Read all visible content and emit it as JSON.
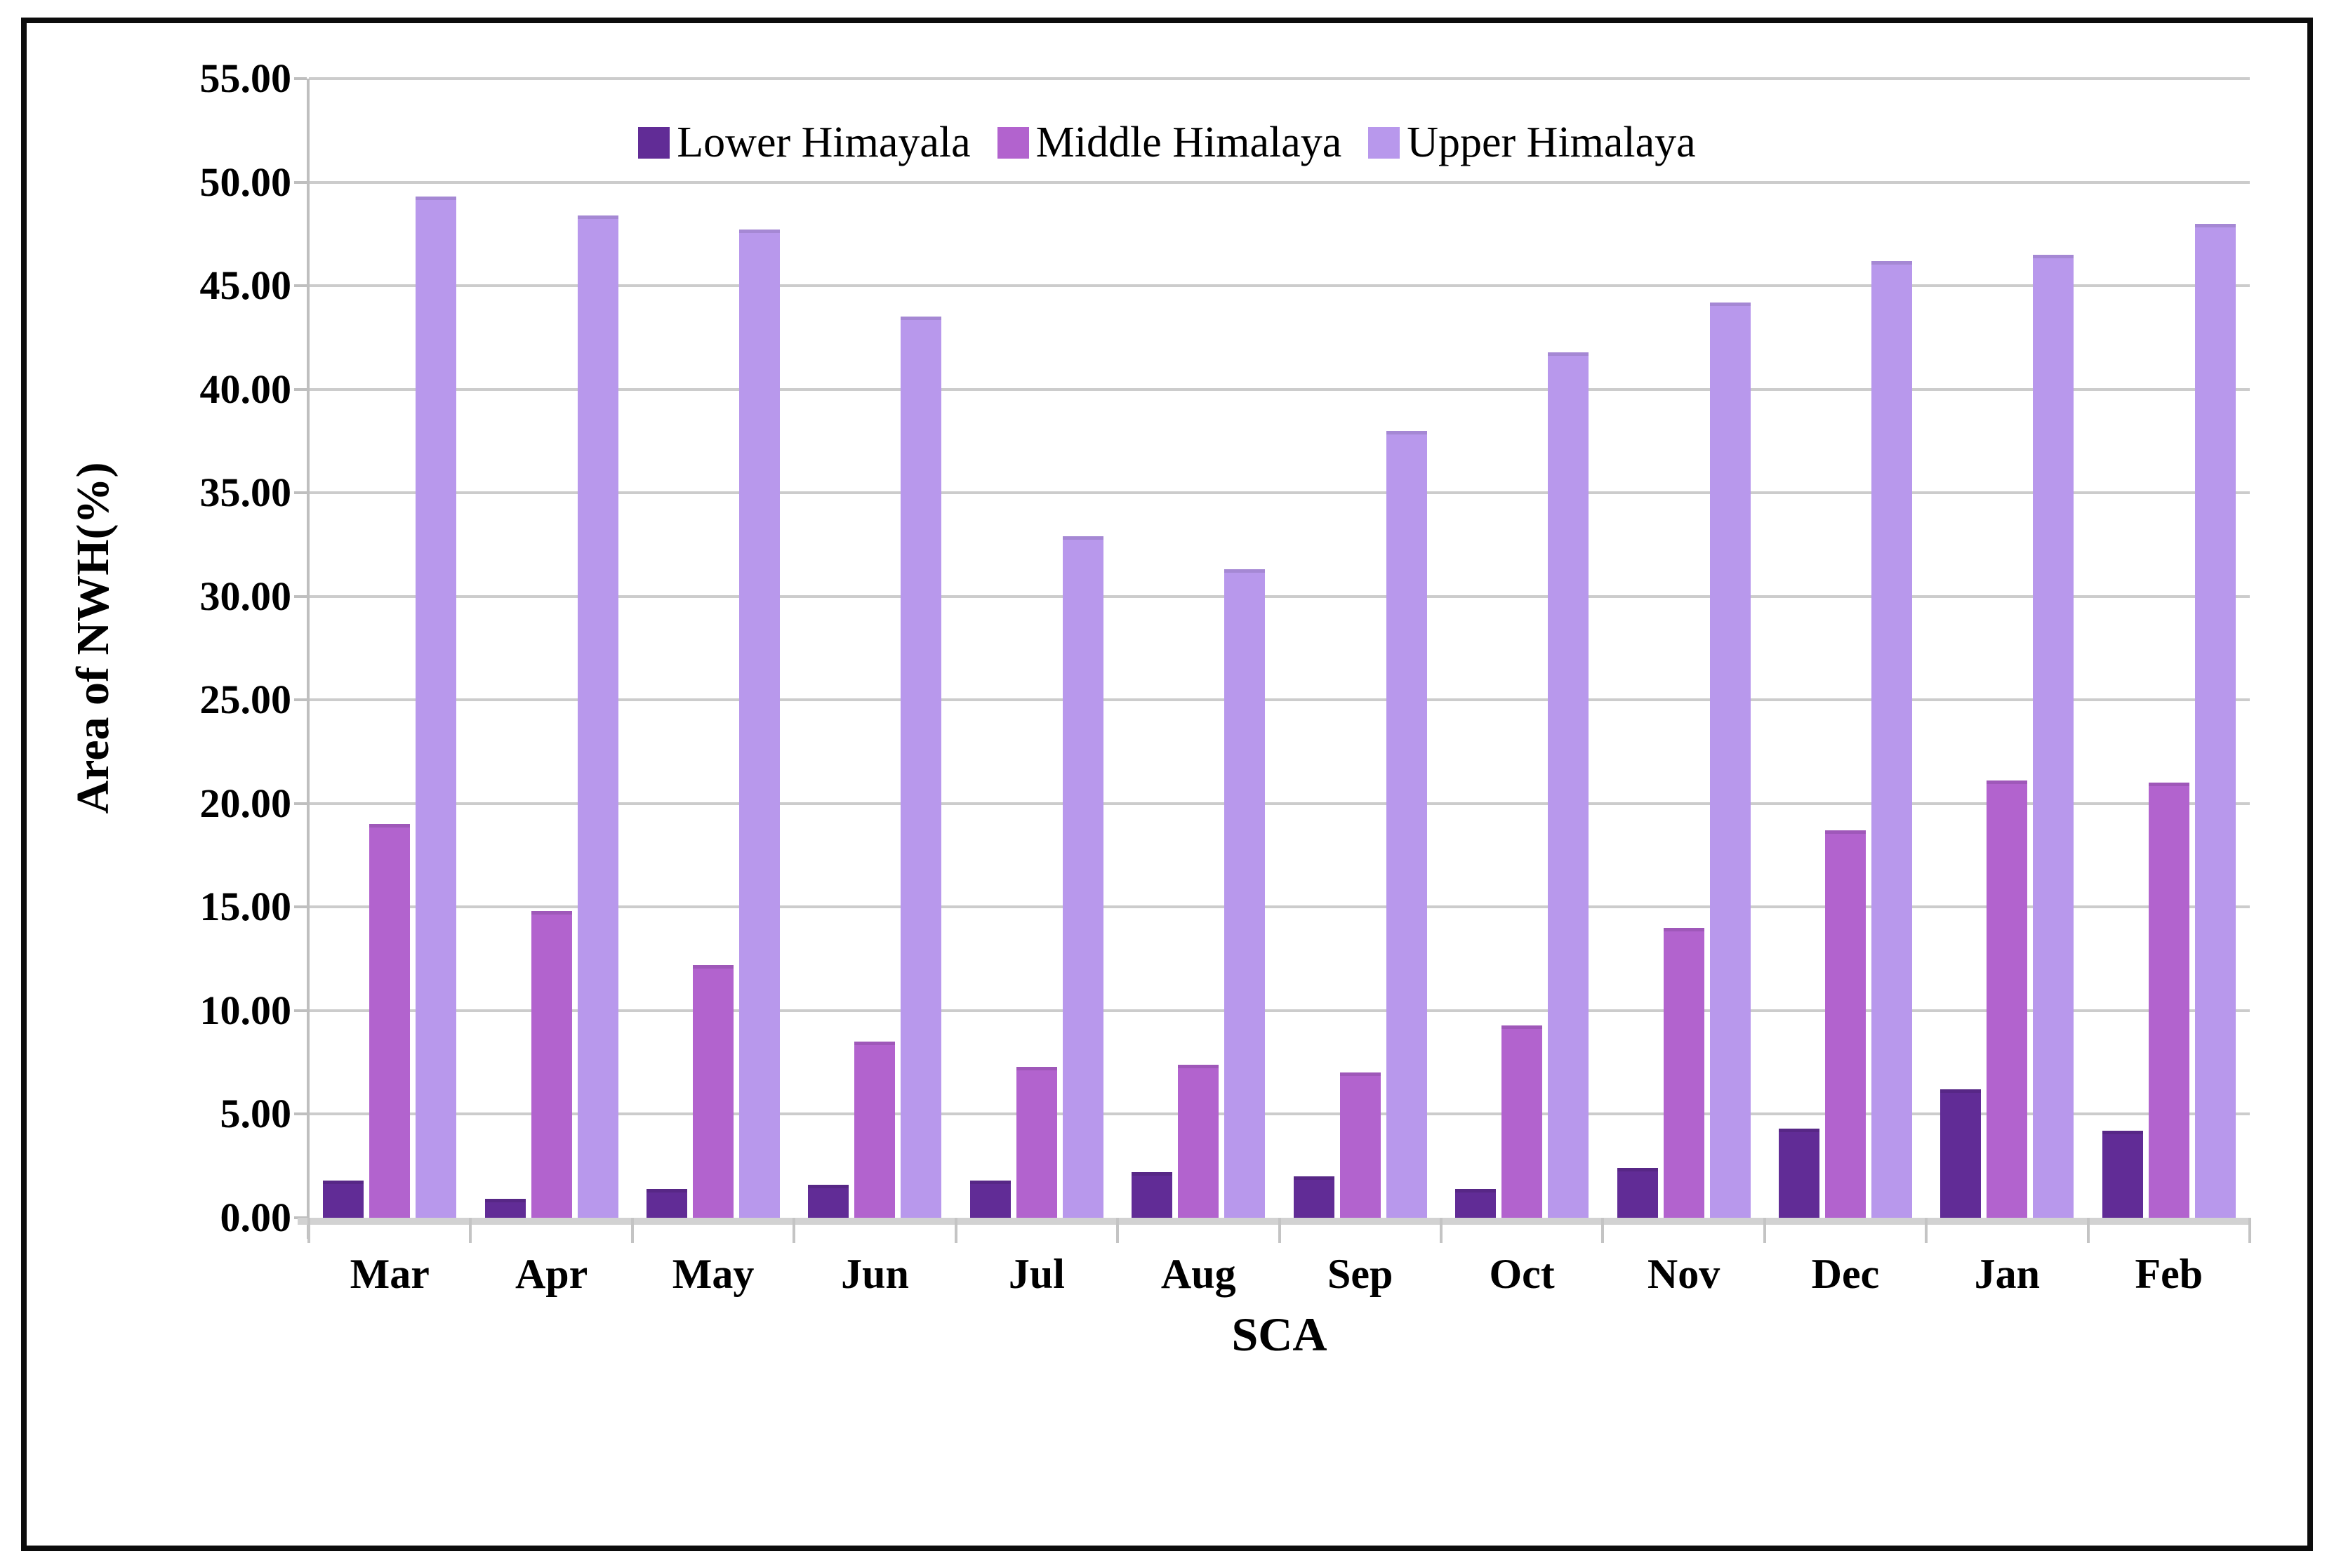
{
  "figure": {
    "frame_border_color": "#0c0c0c",
    "background": "#ffffff"
  },
  "chart_data": {
    "type": "bar",
    "title": "",
    "xlabel": "SCA",
    "ylabel": "Area of NWH(%)",
    "categories": [
      "Mar",
      "Apr",
      "May",
      "Jun",
      "Jul",
      "Aug",
      "Sep",
      "Oct",
      "Nov",
      "Dec",
      "Jan",
      "Feb"
    ],
    "series": [
      {
        "name": "Lower Himayala",
        "color": "#612c96",
        "values": [
          1.8,
          0.9,
          1.4,
          1.6,
          1.8,
          2.2,
          2.0,
          1.4,
          2.4,
          4.3,
          6.2,
          4.2
        ]
      },
      {
        "name": "Middle Himalaya",
        "color": "#b263ce",
        "values": [
          19.0,
          14.8,
          12.2,
          8.5,
          7.3,
          7.4,
          7.0,
          9.3,
          14.0,
          18.7,
          21.1,
          21.0
        ]
      },
      {
        "name": "Upper Himalaya",
        "color": "#b898ec",
        "values": [
          49.3,
          48.4,
          47.7,
          43.5,
          32.9,
          31.3,
          38.0,
          41.8,
          44.2,
          46.2,
          46.5,
          48.0
        ]
      }
    ],
    "ylim": [
      0,
      55
    ],
    "ytick_step": 5,
    "ytick_decimals": 2,
    "grid": true,
    "legend_position": "top-center",
    "gridline_color": "#cccccc",
    "axis_color": "#bfbfbf",
    "zero_line_color": "#d2d2d2"
  }
}
